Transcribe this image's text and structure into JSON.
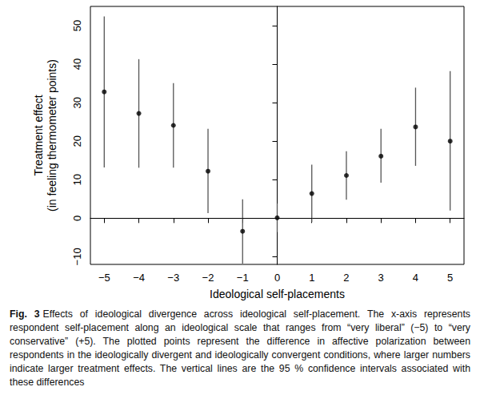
{
  "chart_data": {
    "type": "scatter",
    "xlabel": "Ideological self-placements",
    "ylabel": "Treatment effect\n(in feeling thermometer points)",
    "x": [
      -5,
      -4,
      -3,
      -2,
      -1,
      0,
      1,
      2,
      3,
      4,
      5
    ],
    "values": [
      32.8,
      27.2,
      24.1,
      12.2,
      -3.4,
      0.1,
      6.4,
      11.1,
      16.1,
      23.7,
      20.0
    ],
    "ci_lower": [
      13.2,
      13.1,
      13.1,
      1.3,
      -11.8,
      -3.6,
      -1.0,
      4.8,
      9.2,
      13.6,
      2.0
    ],
    "ci_upper": [
      52.4,
      41.3,
      35.1,
      23.2,
      4.9,
      3.8,
      13.9,
      17.4,
      23.2,
      33.9,
      38.2
    ],
    "reference_y": 0,
    "color": "#000000",
    "marker": "circle",
    "xlim": [
      -5.4,
      5.4
    ],
    "xticks": [
      -5,
      -4,
      -3,
      -2,
      -1,
      0,
      1,
      2,
      3,
      4,
      5
    ],
    "ylim": [
      -12,
      55
    ],
    "yticks": [
      -10,
      0,
      10,
      20,
      30,
      40,
      50
    ],
    "grid": false,
    "caption": {
      "label": "Fig. 3",
      "text": "Effects of ideological divergence across ideological self-placement. The x-axis represents respondent self-placement along an ideological scale that ranges from “very liberal” (−5) to “very conservative” (+5). The plotted points represent the difference in affective polarization between respondents in the ideologically divergent and ideologically convergent conditions, where larger numbers indicate larger treatment effects. The vertical lines are the 95 % confidence intervals associated with these differences"
    }
  }
}
